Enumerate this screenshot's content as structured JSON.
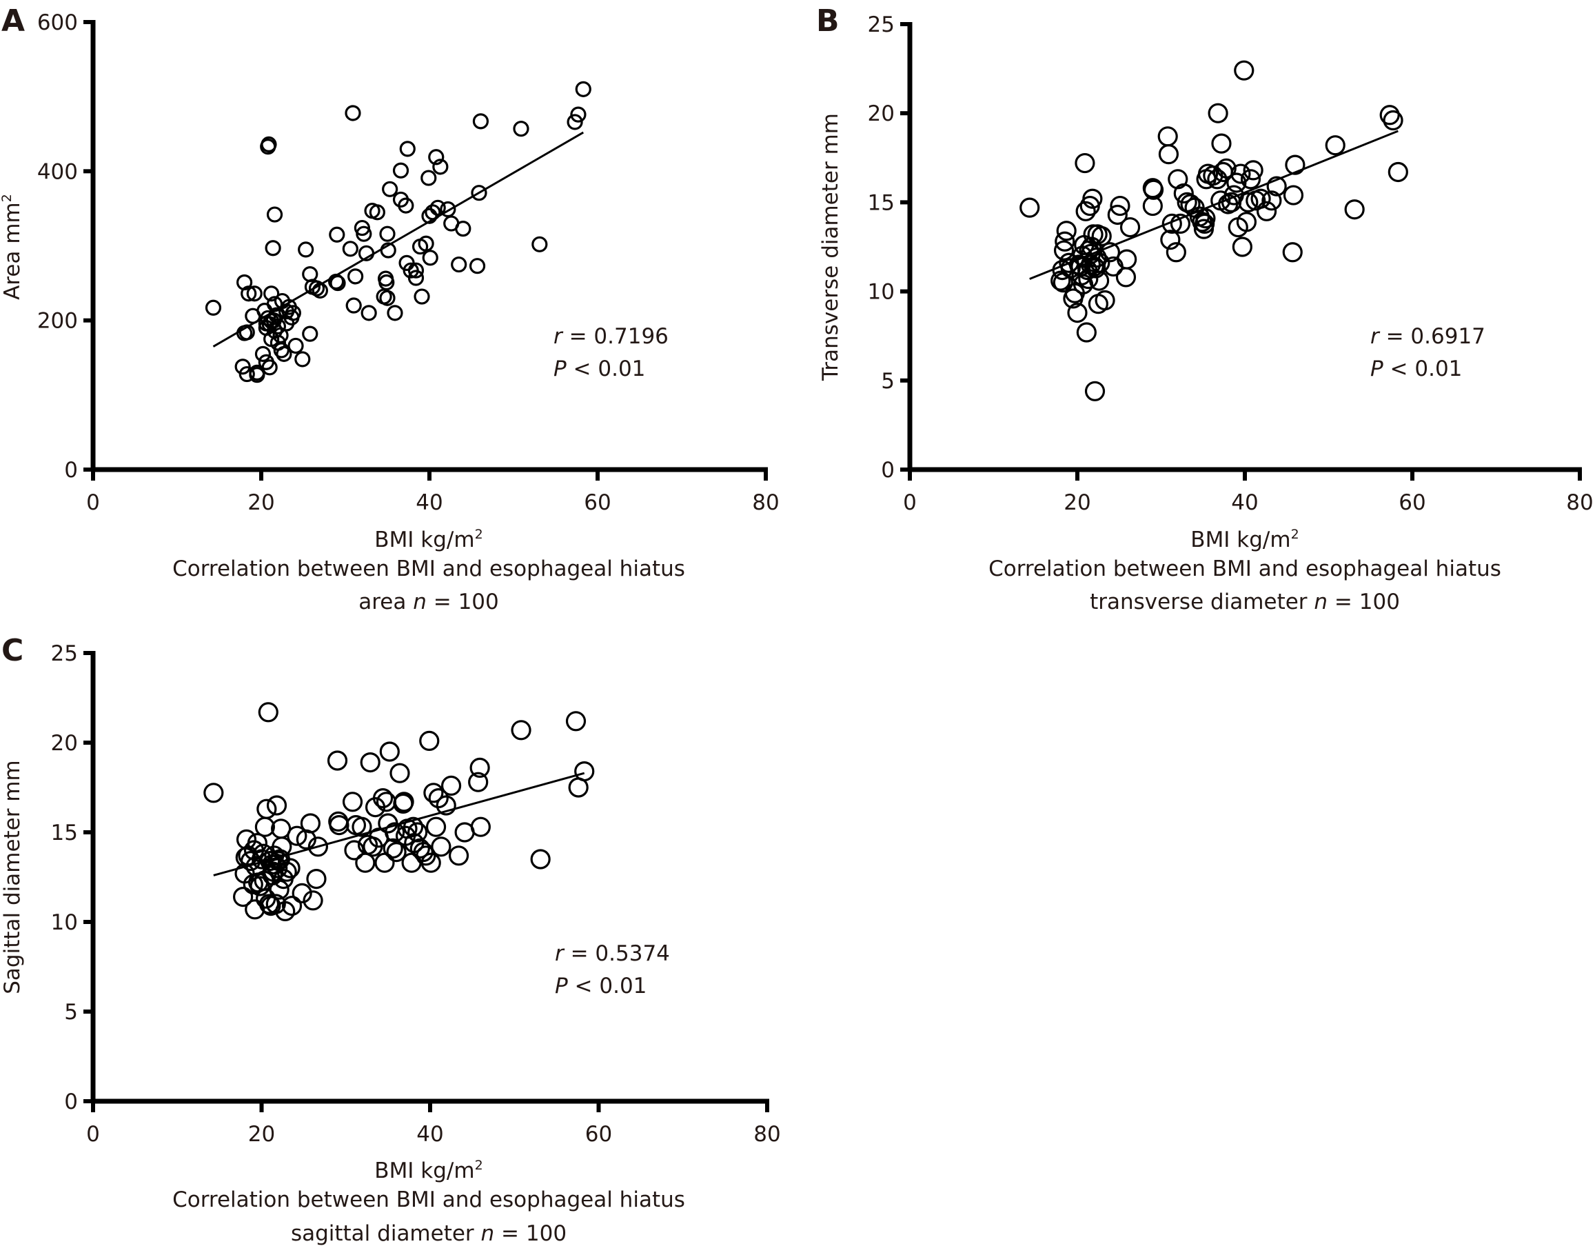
{
  "chart_data": [
    {
      "id": "A",
      "type": "scatter",
      "panel_label": "A",
      "title": "",
      "xlabel": "BMI kg/m²",
      "xlabel_base": "BMI kg/m",
      "xlabel_sup": "2",
      "ylabel": "Area mm²",
      "ylabel_base": "Area mm",
      "ylabel_sup": "2",
      "xlim": [
        0,
        80
      ],
      "ylim": [
        0,
        600
      ],
      "xticks": [
        0,
        20,
        40,
        60,
        80
      ],
      "yticks": [
        0,
        200,
        400,
        600
      ],
      "grid": false,
      "caption_line1": "Correlation between BMI and esophageal hiatus",
      "caption_line2_pre": "area ",
      "caption_line2_n": "n",
      "caption_line2_post": " = 100",
      "stat_r_symbol": "r",
      "stat_r_text": " = 0.7196",
      "stat_p_symbol": "P",
      "stat_p_text": " < 0.01",
      "r": 0.7196,
      "p": "< 0.01",
      "n": 100,
      "fit_line": {
        "x": [
          14.3,
          58.3
        ],
        "y": [
          165,
          452
        ]
      },
      "points": [
        [
          14.3,
          217
        ],
        [
          18.0,
          251
        ],
        [
          18.5,
          236
        ],
        [
          19.2,
          236
        ],
        [
          19.0,
          206
        ],
        [
          18.3,
          184
        ],
        [
          18.0,
          183
        ],
        [
          17.8,
          138
        ],
        [
          18.3,
          128
        ],
        [
          19.5,
          130
        ],
        [
          19.5,
          127
        ],
        [
          20.2,
          155
        ],
        [
          20.6,
          144
        ],
        [
          21.0,
          137
        ],
        [
          20.4,
          213
        ],
        [
          20.8,
          203
        ],
        [
          21.2,
          199
        ],
        [
          21.5,
          200
        ],
        [
          21.0,
          195
        ],
        [
          20.6,
          190
        ],
        [
          21.8,
          207
        ],
        [
          22.0,
          192
        ],
        [
          22.3,
          180
        ],
        [
          21.6,
          186
        ],
        [
          21.2,
          175
        ],
        [
          22.0,
          170
        ],
        [
          22.4,
          160
        ],
        [
          22.7,
          155
        ],
        [
          23.0,
          196
        ],
        [
          23.3,
          218
        ],
        [
          23.0,
          212
        ],
        [
          23.6,
          204
        ],
        [
          22.5,
          226
        ],
        [
          21.6,
          222
        ],
        [
          21.2,
          236
        ],
        [
          20.6,
          196
        ],
        [
          20.9,
          436
        ],
        [
          20.8,
          433
        ],
        [
          21.6,
          342
        ],
        [
          21.4,
          297
        ],
        [
          24.1,
          166
        ],
        [
          24.9,
          148
        ],
        [
          25.3,
          295
        ],
        [
          25.8,
          262
        ],
        [
          26.1,
          245
        ],
        [
          26.6,
          243
        ],
        [
          25.8,
          182
        ],
        [
          29.0,
          315
        ],
        [
          28.9,
          252
        ],
        [
          29.1,
          250
        ],
        [
          30.6,
          296
        ],
        [
          30.9,
          478
        ],
        [
          31.2,
          259
        ],
        [
          31.0,
          220
        ],
        [
          32.0,
          324
        ],
        [
          32.2,
          316
        ],
        [
          32.5,
          290
        ],
        [
          33.2,
          347
        ],
        [
          33.8,
          345
        ],
        [
          32.8,
          210
        ],
        [
          34.6,
          232
        ],
        [
          34.8,
          256
        ],
        [
          34.9,
          251
        ],
        [
          35.0,
          230
        ],
        [
          35.1,
          294
        ],
        [
          35.0,
          316
        ],
        [
          35.3,
          376
        ],
        [
          35.9,
          210
        ],
        [
          36.6,
          362
        ],
        [
          37.2,
          354
        ],
        [
          36.6,
          401
        ],
        [
          37.4,
          430
        ],
        [
          37.3,
          277
        ],
        [
          37.8,
          267
        ],
        [
          38.4,
          267
        ],
        [
          38.4,
          257
        ],
        [
          38.9,
          299
        ],
        [
          39.1,
          232
        ],
        [
          39.6,
          303
        ],
        [
          39.9,
          391
        ],
        [
          40.1,
          284
        ],
        [
          40.4,
          345
        ],
        [
          40.8,
          419
        ],
        [
          41.0,
          351
        ],
        [
          41.3,
          406
        ],
        [
          42.2,
          349
        ],
        [
          42.6,
          330
        ],
        [
          43.5,
          275
        ],
        [
          44.0,
          323
        ],
        [
          45.7,
          273
        ],
        [
          45.9,
          371
        ],
        [
          46.1,
          467
        ],
        [
          50.9,
          457
        ],
        [
          53.1,
          302
        ],
        [
          57.3,
          466
        ],
        [
          57.7,
          476
        ],
        [
          58.3,
          510
        ],
        [
          40.0,
          340
        ],
        [
          27.0,
          240
        ],
        [
          23.8,
          210
        ]
      ]
    },
    {
      "id": "B",
      "type": "scatter",
      "panel_label": "B",
      "title": "",
      "xlabel": "BMI kg/m²",
      "xlabel_base": "BMI kg/m",
      "xlabel_sup": "2",
      "ylabel": "Transverse diameter mm",
      "xlim": [
        0,
        80
      ],
      "ylim": [
        0,
        25
      ],
      "xticks": [
        0,
        20,
        40,
        60,
        80
      ],
      "yticks": [
        0,
        5,
        10,
        15,
        20,
        25
      ],
      "grid": false,
      "caption_line1": "Correlation between BMI and esophageal hiatus",
      "caption_line2_pre": "transverse diameter ",
      "caption_line2_n": "n",
      "caption_line2_post": " = 100",
      "stat_r_symbol": "r",
      "stat_r_text": " = 0.6917",
      "stat_p_symbol": "P",
      "stat_p_text": " < 0.01",
      "r": 0.6917,
      "p": "< 0.01",
      "n": 100,
      "fit_line": {
        "x": [
          14.3,
          58.3
        ],
        "y": [
          10.7,
          19.0
        ]
      },
      "points": [
        [
          14.3,
          14.7
        ],
        [
          18.0,
          10.6
        ],
        [
          18.2,
          11.2
        ],
        [
          18.4,
          12.3
        ],
        [
          18.5,
          12.8
        ],
        [
          18.7,
          13.4
        ],
        [
          18.3,
          10.5
        ],
        [
          19.0,
          11.6
        ],
        [
          19.2,
          11.3
        ],
        [
          19.5,
          9.6
        ],
        [
          19.7,
          9.9
        ],
        [
          20.0,
          8.8
        ],
        [
          20.2,
          11.5
        ],
        [
          20.4,
          11.4
        ],
        [
          20.6,
          12.0
        ],
        [
          20.7,
          10.4
        ],
        [
          20.8,
          12.6
        ],
        [
          20.9,
          17.2
        ],
        [
          21.0,
          14.5
        ],
        [
          21.1,
          7.7
        ],
        [
          21.2,
          11.2
        ],
        [
          21.3,
          10.7
        ],
        [
          21.4,
          12.3
        ],
        [
          21.5,
          14.8
        ],
        [
          21.6,
          11.5
        ],
        [
          21.7,
          12.5
        ],
        [
          21.8,
          15.2
        ],
        [
          21.9,
          13.2
        ],
        [
          22.0,
          11.4
        ],
        [
          22.1,
          4.4
        ],
        [
          22.2,
          11.3
        ],
        [
          22.3,
          11.9
        ],
        [
          22.4,
          13.2
        ],
        [
          22.5,
          9.3
        ],
        [
          22.6,
          10.6
        ],
        [
          22.7,
          11.6
        ],
        [
          22.9,
          13.1
        ],
        [
          23.3,
          9.5
        ],
        [
          23.9,
          12.2
        ],
        [
          24.3,
          11.4
        ],
        [
          24.8,
          14.3
        ],
        [
          25.1,
          14.8
        ],
        [
          25.8,
          10.8
        ],
        [
          25.9,
          11.8
        ],
        [
          26.3,
          13.6
        ],
        [
          29.0,
          15.8
        ],
        [
          29.1,
          15.7
        ],
        [
          29.0,
          14.8
        ],
        [
          30.8,
          18.7
        ],
        [
          30.9,
          17.7
        ],
        [
          31.1,
          12.9
        ],
        [
          31.3,
          13.8
        ],
        [
          31.8,
          12.2
        ],
        [
          32.0,
          16.3
        ],
        [
          32.3,
          13.8
        ],
        [
          32.7,
          15.5
        ],
        [
          33.1,
          15.0
        ],
        [
          33.5,
          14.9
        ],
        [
          34.0,
          14.7
        ],
        [
          34.6,
          14.2
        ],
        [
          34.9,
          13.9
        ],
        [
          35.1,
          13.5
        ],
        [
          35.2,
          13.8
        ],
        [
          35.3,
          14.1
        ],
        [
          35.4,
          16.3
        ],
        [
          35.6,
          16.6
        ],
        [
          36.2,
          16.5
        ],
        [
          36.7,
          16.3
        ],
        [
          36.8,
          20.0
        ],
        [
          37.2,
          18.3
        ],
        [
          37.1,
          15.1
        ],
        [
          37.4,
          16.7
        ],
        [
          37.8,
          16.9
        ],
        [
          38.0,
          14.9
        ],
        [
          38.4,
          15.0
        ],
        [
          38.7,
          15.4
        ],
        [
          39.0,
          16.1
        ],
        [
          39.2,
          13.6
        ],
        [
          39.5,
          16.6
        ],
        [
          39.7,
          12.5
        ],
        [
          39.9,
          22.4
        ],
        [
          40.2,
          13.9
        ],
        [
          40.4,
          15.0
        ],
        [
          40.7,
          16.3
        ],
        [
          41.0,
          16.8
        ],
        [
          41.3,
          15.1
        ],
        [
          41.9,
          15.2
        ],
        [
          42.6,
          14.5
        ],
        [
          43.2,
          15.1
        ],
        [
          43.8,
          15.9
        ],
        [
          45.7,
          12.2
        ],
        [
          45.8,
          15.4
        ],
        [
          46.0,
          17.1
        ],
        [
          50.8,
          18.2
        ],
        [
          53.1,
          14.6
        ],
        [
          57.3,
          19.9
        ],
        [
          57.7,
          19.6
        ],
        [
          58.3,
          16.7
        ],
        [
          21.6,
          12.1
        ],
        [
          20.5,
          10.9
        ]
      ]
    },
    {
      "id": "C",
      "type": "scatter",
      "panel_label": "C",
      "title": "",
      "xlabel": "BMI kg/m²",
      "xlabel_base": "BMI kg/m",
      "xlabel_sup": "2",
      "ylabel": "Sagittal diameter mm",
      "xlim": [
        0,
        80
      ],
      "ylim": [
        0,
        25
      ],
      "xticks": [
        0,
        20,
        40,
        60,
        80
      ],
      "yticks": [
        0,
        5,
        10,
        15,
        20,
        25
      ],
      "grid": false,
      "caption_line1": "Correlation between BMI and esophageal hiatus",
      "caption_line2_pre": "sagittal diameter ",
      "caption_line2_n": "n",
      "caption_line2_post": " = 100",
      "stat_r_symbol": "r",
      "stat_r_text": " = 0.5374",
      "stat_p_symbol": "P",
      "stat_p_text": " < 0.01",
      "r": 0.5374,
      "p": "< 0.01",
      "n": 100,
      "fit_line": {
        "x": [
          14.3,
          58.3
        ],
        "y": [
          12.6,
          18.3
        ]
      },
      "points": [
        [
          14.3,
          17.2
        ],
        [
          17.8,
          11.4
        ],
        [
          18.0,
          12.7
        ],
        [
          18.1,
          13.6
        ],
        [
          18.2,
          14.6
        ],
        [
          18.4,
          13.7
        ],
        [
          18.7,
          13.4
        ],
        [
          19.0,
          12.1
        ],
        [
          19.2,
          10.7
        ],
        [
          19.3,
          13.1
        ],
        [
          19.5,
          14.4
        ],
        [
          19.6,
          12.2
        ],
        [
          19.8,
          12.0
        ],
        [
          20.0,
          13.5
        ],
        [
          20.2,
          13.8
        ],
        [
          20.4,
          15.3
        ],
        [
          20.5,
          11.3
        ],
        [
          20.6,
          16.3
        ],
        [
          20.8,
          21.7
        ],
        [
          20.9,
          11.0
        ],
        [
          21.0,
          13.4
        ],
        [
          21.1,
          10.9
        ],
        [
          21.2,
          13.2
        ],
        [
          21.4,
          12.8
        ],
        [
          21.5,
          13.7
        ],
        [
          21.6,
          13.2
        ],
        [
          21.8,
          16.5
        ],
        [
          21.9,
          13.0
        ],
        [
          22.0,
          13.4
        ],
        [
          22.1,
          11.8
        ],
        [
          22.3,
          15.2
        ],
        [
          22.4,
          14.2
        ],
        [
          22.6,
          12.4
        ],
        [
          22.8,
          10.6
        ],
        [
          23.0,
          12.8
        ],
        [
          23.4,
          13.0
        ],
        [
          23.6,
          10.9
        ],
        [
          24.2,
          14.8
        ],
        [
          24.8,
          11.6
        ],
        [
          25.3,
          14.6
        ],
        [
          25.8,
          15.5
        ],
        [
          26.1,
          11.2
        ],
        [
          26.5,
          12.4
        ],
        [
          26.7,
          14.2
        ],
        [
          29.0,
          19.0
        ],
        [
          29.1,
          15.6
        ],
        [
          29.2,
          15.4
        ],
        [
          30.8,
          16.7
        ],
        [
          31.0,
          14.0
        ],
        [
          31.2,
          15.4
        ],
        [
          31.9,
          15.3
        ],
        [
          32.3,
          13.3
        ],
        [
          32.6,
          14.3
        ],
        [
          32.9,
          18.9
        ],
        [
          33.5,
          16.4
        ],
        [
          33.9,
          14.7
        ],
        [
          34.4,
          16.9
        ],
        [
          34.6,
          13.3
        ],
        [
          34.8,
          16.7
        ],
        [
          35.0,
          15.5
        ],
        [
          35.2,
          19.5
        ],
        [
          35.6,
          14.1
        ],
        [
          36.0,
          13.9
        ],
        [
          36.4,
          18.3
        ],
        [
          36.8,
          16.6
        ],
        [
          36.9,
          16.7
        ],
        [
          37.1,
          14.8
        ],
        [
          37.3,
          15.2
        ],
        [
          37.8,
          13.3
        ],
        [
          38.1,
          14.4
        ],
        [
          38.5,
          15.0
        ],
        [
          38.8,
          14.1
        ],
        [
          39.2,
          13.9
        ],
        [
          39.5,
          13.7
        ],
        [
          39.9,
          20.1
        ],
        [
          40.1,
          13.3
        ],
        [
          40.4,
          17.2
        ],
        [
          40.7,
          15.3
        ],
        [
          41.0,
          16.9
        ],
        [
          41.3,
          14.2
        ],
        [
          41.9,
          16.5
        ],
        [
          42.5,
          17.6
        ],
        [
          43.4,
          13.7
        ],
        [
          44.1,
          15.0
        ],
        [
          45.7,
          17.8
        ],
        [
          45.9,
          18.6
        ],
        [
          46.0,
          15.3
        ],
        [
          50.8,
          20.7
        ],
        [
          53.1,
          13.5
        ],
        [
          57.3,
          21.2
        ],
        [
          57.6,
          17.5
        ],
        [
          58.3,
          18.4
        ],
        [
          21.3,
          12.6
        ],
        [
          22.2,
          13.5
        ],
        [
          20.3,
          12.3
        ],
        [
          19.1,
          14.0
        ],
        [
          33.2,
          14.2
        ],
        [
          35.8,
          15.0
        ],
        [
          38.0,
          15.3
        ],
        [
          21.7,
          11.0
        ]
      ]
    }
  ]
}
